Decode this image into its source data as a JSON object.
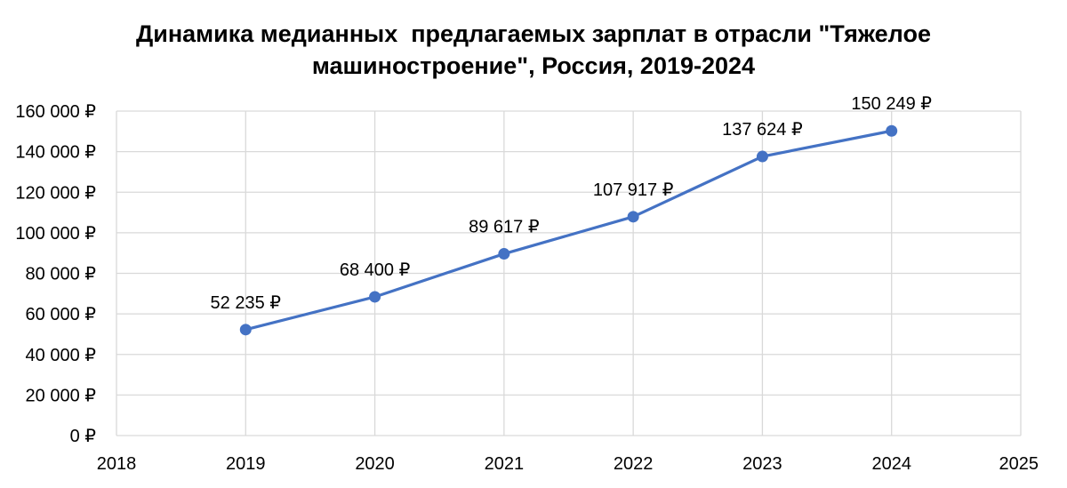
{
  "chart_data": {
    "type": "scatter",
    "title_lines": [
      "Динамика медианных  предлагаемых зарплат в отрасли \"Тяжелое",
      "машиностроение\", Россия, 2019-2024"
    ],
    "xlabel": "",
    "ylabel": "",
    "x": [
      2019,
      2020,
      2021,
      2022,
      2023,
      2024
    ],
    "y": [
      52235,
      68400,
      89617,
      107917,
      137624,
      150249
    ],
    "point_labels": [
      "52 235 ₽",
      "68 400 ₽",
      "89 617 ₽",
      "107 917 ₽",
      "137 624 ₽",
      "150 249 ₽"
    ],
    "xlim": [
      2018,
      2025
    ],
    "ylim": [
      0,
      160000
    ],
    "x_ticks": [
      "2018",
      "2019",
      "2020",
      "2021",
      "2022",
      "2023",
      "2024",
      "2025"
    ],
    "y_ticks": [
      "0 ₽",
      "20 000 ₽",
      "40 000 ₽",
      "60 000 ₽",
      "80 000 ₽",
      "100 000 ₽",
      "120 000 ₽",
      "140 000 ₽",
      "160 000 ₽"
    ],
    "grid": true,
    "line_style": "straight lines with markers",
    "series_color": "#4472C4",
    "grid_color": "#D9D9D9"
  }
}
